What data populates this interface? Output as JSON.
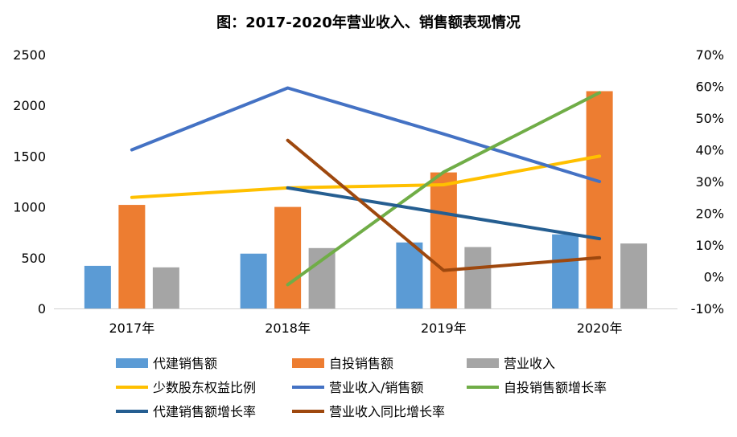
{
  "chart_data": {
    "type": "bar",
    "title": "图：2017-2020年营业收入、销售额表现情况",
    "categories": [
      "2017年",
      "2018年",
      "2019年",
      "2020年"
    ],
    "y_left": {
      "min": 0,
      "max": 2500,
      "ticks": [
        "0",
        "500",
        "1000",
        "1500",
        "2000",
        "2500"
      ]
    },
    "y_right": {
      "min": -10,
      "max": 70,
      "ticks": [
        "-10%",
        "0%",
        "10%",
        "20%",
        "30%",
        "40%",
        "50%",
        "60%",
        "70%"
      ]
    },
    "bar_series": [
      {
        "name": "代建销售额",
        "color": "#5b9bd5",
        "values": [
          420,
          540,
          650,
          730
        ]
      },
      {
        "name": "自投销售额",
        "color": "#ed7d31",
        "values": [
          1020,
          1000,
          1340,
          2140
        ]
      },
      {
        "name": "营业收入",
        "color": "#a5a5a5",
        "values": [
          405,
          595,
          605,
          640
        ]
      }
    ],
    "line_series": [
      {
        "name": "少数股东权益比例",
        "color": "#ffc000",
        "axis": "right",
        "values": [
          25,
          28,
          29,
          38
        ]
      },
      {
        "name": "营业收入/销售额",
        "color": "#4472c4",
        "axis": "right",
        "values": [
          40,
          59.5,
          45,
          30
        ]
      },
      {
        "name": "自投销售额增长率",
        "color": "#70ad47",
        "axis": "right",
        "values": [
          null,
          -2.5,
          33,
          58
        ]
      },
      {
        "name": "代建销售额增长率",
        "color": "#255e91",
        "axis": "right",
        "values": [
          null,
          28,
          null,
          12
        ]
      },
      {
        "name": "营业收入同比增长率",
        "color": "#9e480e",
        "axis": "right",
        "values": [
          null,
          43,
          2,
          6
        ]
      }
    ],
    "legend_position": "bottom",
    "grid": false
  }
}
